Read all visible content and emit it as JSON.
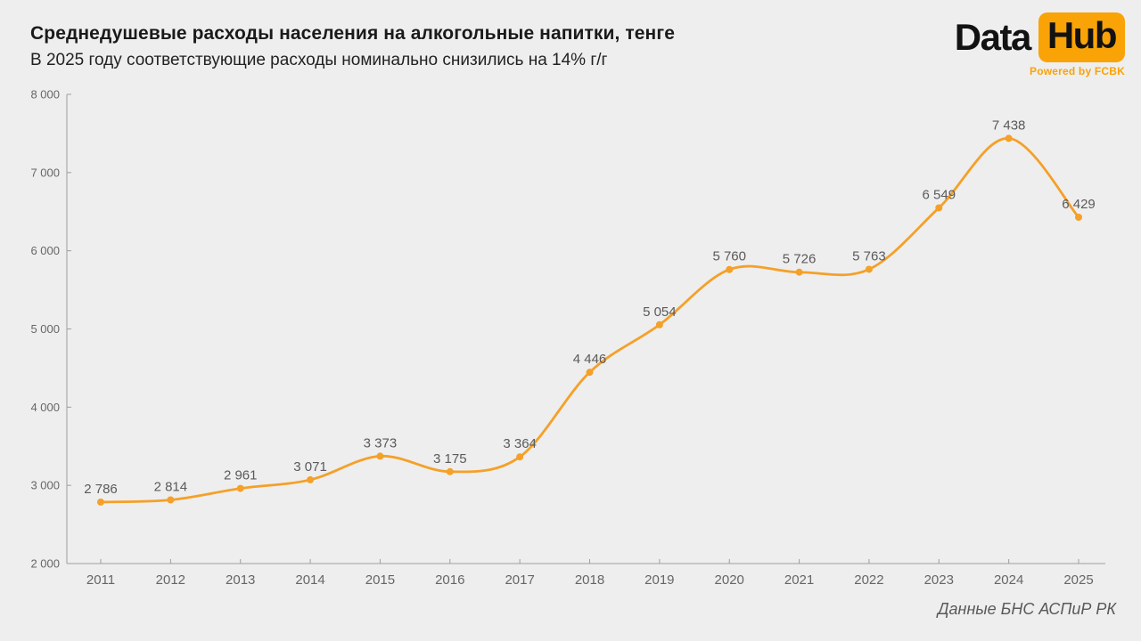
{
  "header": {
    "title": "Среднедушевые расходы населения на алкогольные напитки, тенге",
    "subtitle": "В 2025 году соответствующие расходы номинально снизились на 14% г/г"
  },
  "logo": {
    "part1": "Data",
    "part2": "Hub",
    "tagline": "Powered by FCBK"
  },
  "source": "Данные БНС АСПиР РК",
  "colors": {
    "background": "#EEEEEE",
    "line": "#F5A028",
    "marker": "#F5A028",
    "logo_accent": "#F9A307",
    "data_label": "#5a5a5a",
    "axis": "#9e9e9e",
    "tick_label": "#666666"
  },
  "chart_data": {
    "type": "line",
    "title": "Среднедушевые расходы населения на алкогольные напитки, тенге",
    "x": [
      2011,
      2012,
      2013,
      2014,
      2015,
      2016,
      2017,
      2018,
      2019,
      2020,
      2021,
      2022,
      2023,
      2024,
      2025
    ],
    "x_labels": [
      "2011",
      "2012",
      "2013",
      "2014",
      "2015",
      "2016",
      "2017",
      "2018",
      "2019",
      "2020",
      "2021",
      "2022",
      "2023",
      "2024",
      "2025"
    ],
    "values": [
      2786,
      2814,
      2961,
      3071,
      3373,
      3175,
      3364,
      4446,
      5054,
      5760,
      5726,
      5763,
      6549,
      7438,
      6429
    ],
    "point_labels": [
      "2 786",
      "2 814",
      "2 961",
      "3 071",
      "3 373",
      "3 175",
      "3 364",
      "4 446",
      "5 054",
      "5 760",
      "5 726",
      "5 763",
      "6 549",
      "7 438",
      "6 429"
    ],
    "ylim": [
      2000,
      8000
    ],
    "yticks": [
      2000,
      3000,
      4000,
      5000,
      6000,
      7000,
      8000
    ],
    "ytick_labels": [
      "2 000",
      "3 000",
      "4 000",
      "5 000",
      "6 000",
      "7 000",
      "8 000"
    ],
    "grid": false,
    "smooth": true,
    "marker": "circle",
    "legend": null
  }
}
